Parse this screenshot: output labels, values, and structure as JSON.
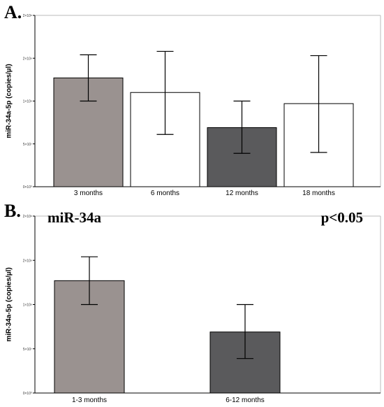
{
  "chart_data": [
    {
      "panel": "A.",
      "type": "bar",
      "ylabel": "miR-34a-5p (copies/µl)",
      "ylim": [
        0,
        200000000
      ],
      "yticks": [
        0,
        50000000,
        100000000,
        150000000,
        200000000
      ],
      "ytick_labels": [
        "0×10⁰",
        "5×10⁷",
        "1×10⁸",
        "2×10⁸",
        "2×10⁸"
      ],
      "categories": [
        "3 months",
        "6 months",
        "12 months",
        "18 months"
      ],
      "values": [
        127000000,
        110000000,
        69000000,
        97000000
      ],
      "error_low": [
        100000000,
        61000000,
        39000000,
        40000000
      ],
      "error_high": [
        154000000,
        158000000,
        100000000,
        153000000
      ],
      "colors": [
        "#9a9290",
        "#ffffff",
        "#5a5a5c",
        "#ffffff"
      ],
      "grid": false
    },
    {
      "panel": "B.",
      "type": "bar",
      "ylabel": "miR-34a-5p (copies/µl)",
      "annotations": [
        "miR-34a",
        "p<0.05"
      ],
      "ylim": [
        0,
        200000000
      ],
      "yticks": [
        0,
        50000000,
        100000000,
        150000000,
        200000000
      ],
      "ytick_labels": [
        "0×10⁰",
        "5×10⁷",
        "1×10⁸",
        "2×10⁸",
        "2×10⁸"
      ],
      "categories": [
        "1-3 months",
        "6-12 months"
      ],
      "values": [
        127000000,
        69000000
      ],
      "error_low": [
        100000000,
        39000000
      ],
      "error_high": [
        154000000,
        100000000
      ],
      "colors": [
        "#9a9290",
        "#5a5a5c"
      ],
      "grid": false
    }
  ]
}
